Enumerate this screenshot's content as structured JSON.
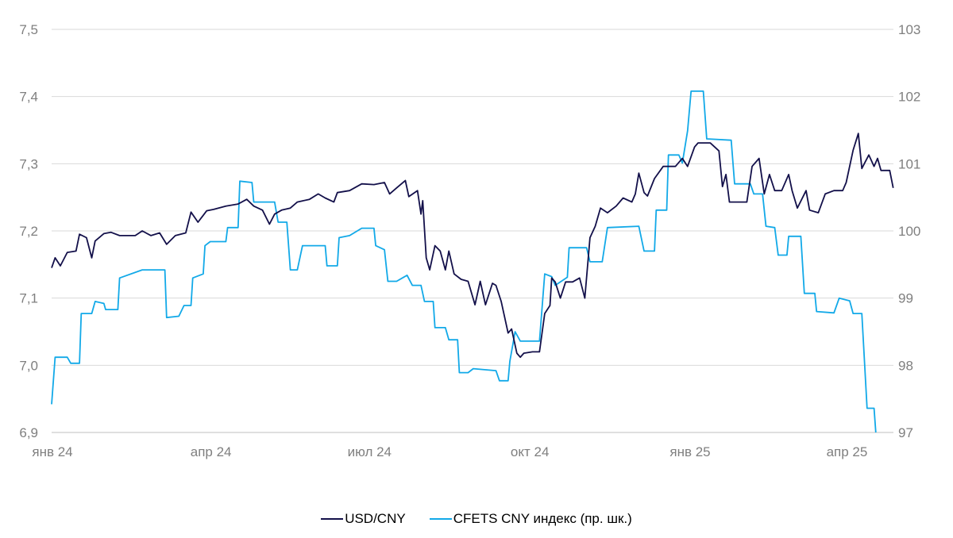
{
  "chart_data": {
    "type": "line",
    "title": "",
    "xlabel": "",
    "ylabel": "",
    "y_left": {
      "range": [
        6.9,
        7.5
      ],
      "ticks": [
        "6,9",
        "7,0",
        "7,1",
        "7,2",
        "7,3",
        "7,4",
        "7,5"
      ],
      "tick_values": [
        6.9,
        7.0,
        7.1,
        7.2,
        7.3,
        7.4,
        7.5
      ]
    },
    "y_right": {
      "range": [
        97,
        103
      ],
      "ticks": [
        "97",
        "98",
        "99",
        "100",
        "101",
        "102",
        "103"
      ],
      "tick_values": [
        97,
        98,
        99,
        100,
        101,
        102,
        103
      ]
    },
    "x_ticks": [
      {
        "label": "янв 24",
        "date": "2024-01-01"
      },
      {
        "label": "апр 24",
        "date": "2024-04-01"
      },
      {
        "label": "июл 24",
        "date": "2024-07-01"
      },
      {
        "label": "окт 24",
        "date": "2024-10-01"
      },
      {
        "label": "янв 25",
        "date": "2025-01-01"
      },
      {
        "label": "апр 25",
        "date": "2025-04-01"
      }
    ],
    "grid": "horizontal",
    "legend_position": "bottom",
    "series": [
      {
        "name": "USD/CNY",
        "axis": "left",
        "color": "#13104a",
        "points": [
          [
            "2024-01-01",
            7.145
          ],
          [
            "2024-01-03",
            7.16
          ],
          [
            "2024-01-06",
            7.148
          ],
          [
            "2024-01-10",
            7.168
          ],
          [
            "2024-01-15",
            7.17
          ],
          [
            "2024-01-17",
            7.195
          ],
          [
            "2024-01-21",
            7.19
          ],
          [
            "2024-01-24",
            7.16
          ],
          [
            "2024-01-26",
            7.185
          ],
          [
            "2024-01-31",
            7.196
          ],
          [
            "2024-02-04",
            7.198
          ],
          [
            "2024-02-09",
            7.193
          ],
          [
            "2024-02-18",
            7.193
          ],
          [
            "2024-02-22",
            7.2
          ],
          [
            "2024-02-27",
            7.193
          ],
          [
            "2024-03-03",
            7.197
          ],
          [
            "2024-03-07",
            7.18
          ],
          [
            "2024-03-12",
            7.193
          ],
          [
            "2024-03-18",
            7.197
          ],
          [
            "2024-03-21",
            7.228
          ],
          [
            "2024-03-25",
            7.213
          ],
          [
            "2024-03-30",
            7.23
          ],
          [
            "2024-04-03",
            7.232
          ],
          [
            "2024-04-10",
            7.237
          ],
          [
            "2024-04-17",
            7.24
          ],
          [
            "2024-04-22",
            7.247
          ],
          [
            "2024-04-26",
            7.237
          ],
          [
            "2024-05-01",
            7.231
          ],
          [
            "2024-05-05",
            7.21
          ],
          [
            "2024-05-08",
            7.225
          ],
          [
            "2024-05-12",
            7.231
          ],
          [
            "2024-05-17",
            7.234
          ],
          [
            "2024-05-21",
            7.243
          ],
          [
            "2024-05-28",
            7.247
          ],
          [
            "2024-06-02",
            7.255
          ],
          [
            "2024-06-06",
            7.249
          ],
          [
            "2024-06-11",
            7.243
          ],
          [
            "2024-06-13",
            7.257
          ],
          [
            "2024-06-20",
            7.26
          ],
          [
            "2024-06-27",
            7.27
          ],
          [
            "2024-07-04",
            7.269
          ],
          [
            "2024-07-10",
            7.272
          ],
          [
            "2024-07-13",
            7.255
          ],
          [
            "2024-07-17",
            7.264
          ],
          [
            "2024-07-22",
            7.275
          ],
          [
            "2024-07-24",
            7.251
          ],
          [
            "2024-07-29",
            7.26
          ],
          [
            "2024-07-31",
            7.225
          ],
          [
            "2024-08-01",
            7.245
          ],
          [
            "2024-08-03",
            7.16
          ],
          [
            "2024-08-05",
            7.142
          ],
          [
            "2024-08-08",
            7.178
          ],
          [
            "2024-08-11",
            7.17
          ],
          [
            "2024-08-14",
            7.142
          ],
          [
            "2024-08-16",
            7.17
          ],
          [
            "2024-08-19",
            7.136
          ],
          [
            "2024-08-23",
            7.128
          ],
          [
            "2024-08-27",
            7.125
          ],
          [
            "2024-08-31",
            7.09
          ],
          [
            "2024-09-03",
            7.125
          ],
          [
            "2024-09-06",
            7.09
          ],
          [
            "2024-09-10",
            7.122
          ],
          [
            "2024-09-12",
            7.119
          ],
          [
            "2024-09-15",
            7.095
          ],
          [
            "2024-09-19",
            7.048
          ],
          [
            "2024-09-21",
            7.054
          ],
          [
            "2024-09-24",
            7.018
          ],
          [
            "2024-09-26",
            7.012
          ],
          [
            "2024-09-28",
            7.018
          ],
          [
            "2024-10-03",
            7.02
          ],
          [
            "2024-10-07",
            7.02
          ],
          [
            "2024-10-10",
            7.077
          ],
          [
            "2024-10-13",
            7.089
          ],
          [
            "2024-10-14",
            7.13
          ],
          [
            "2024-10-16",
            7.124
          ],
          [
            "2024-10-19",
            7.1
          ],
          [
            "2024-10-22",
            7.124
          ],
          [
            "2024-10-26",
            7.124
          ],
          [
            "2024-10-30",
            7.13
          ],
          [
            "2024-11-02",
            7.1
          ],
          [
            "2024-11-05",
            7.19
          ],
          [
            "2024-11-08",
            7.207
          ],
          [
            "2024-11-11",
            7.234
          ],
          [
            "2024-11-15",
            7.227
          ],
          [
            "2024-11-20",
            7.237
          ],
          [
            "2024-11-24",
            7.249
          ],
          [
            "2024-11-29",
            7.243
          ],
          [
            "2024-12-01",
            7.255
          ],
          [
            "2024-12-03",
            7.286
          ],
          [
            "2024-12-06",
            7.257
          ],
          [
            "2024-12-08",
            7.252
          ],
          [
            "2024-12-12",
            7.278
          ],
          [
            "2024-12-17",
            7.296
          ],
          [
            "2024-12-24",
            7.296
          ],
          [
            "2024-12-28",
            7.308
          ],
          [
            "2024-12-31",
            7.296
          ],
          [
            "2025-01-04",
            7.325
          ],
          [
            "2025-01-06",
            7.331
          ],
          [
            "2025-01-13",
            7.331
          ],
          [
            "2025-01-18",
            7.319
          ],
          [
            "2025-01-20",
            7.266
          ],
          [
            "2025-01-22",
            7.284
          ],
          [
            "2025-01-24",
            7.243
          ],
          [
            "2025-01-29",
            7.243
          ],
          [
            "2025-02-03",
            7.243
          ],
          [
            "2025-02-06",
            7.296
          ],
          [
            "2025-02-10",
            7.308
          ],
          [
            "2025-02-13",
            7.255
          ],
          [
            "2025-02-16",
            7.284
          ],
          [
            "2025-02-19",
            7.26
          ],
          [
            "2025-02-23",
            7.26
          ],
          [
            "2025-02-27",
            7.284
          ],
          [
            "2025-03-01",
            7.26
          ],
          [
            "2025-03-04",
            7.234
          ],
          [
            "2025-03-09",
            7.26
          ],
          [
            "2025-03-11",
            7.231
          ],
          [
            "2025-03-16",
            7.227
          ],
          [
            "2025-03-20",
            7.255
          ],
          [
            "2025-03-25",
            7.26
          ],
          [
            "2025-03-30",
            7.26
          ],
          [
            "2025-04-01",
            7.272
          ],
          [
            "2025-04-05",
            7.32
          ],
          [
            "2025-04-08",
            7.345
          ],
          [
            "2025-04-10",
            7.293
          ],
          [
            "2025-04-14",
            7.313
          ],
          [
            "2025-04-17",
            7.296
          ],
          [
            "2025-04-19",
            7.308
          ],
          [
            "2025-04-21",
            7.29
          ],
          [
            "2025-04-26",
            7.29
          ],
          [
            "2025-04-28",
            7.264
          ]
        ]
      },
      {
        "name": "CFETS CNY индекс (пр. шк.)",
        "axis": "right",
        "color": "#12a9e8",
        "points": [
          [
            "2024-01-01",
            97.42
          ],
          [
            "2024-01-03",
            98.12
          ],
          [
            "2024-01-10",
            98.12
          ],
          [
            "2024-01-12",
            98.03
          ],
          [
            "2024-01-17",
            98.03
          ],
          [
            "2024-01-18",
            98.77
          ],
          [
            "2024-01-24",
            98.77
          ],
          [
            "2024-01-26",
            98.95
          ],
          [
            "2024-01-31",
            98.92
          ],
          [
            "2024-02-01",
            98.83
          ],
          [
            "2024-02-08",
            98.83
          ],
          [
            "2024-02-09",
            99.3
          ],
          [
            "2024-02-22",
            99.42
          ],
          [
            "2024-03-06",
            99.42
          ],
          [
            "2024-03-07",
            98.71
          ],
          [
            "2024-03-14",
            98.73
          ],
          [
            "2024-03-17",
            98.89
          ],
          [
            "2024-03-21",
            98.89
          ],
          [
            "2024-03-22",
            99.3
          ],
          [
            "2024-03-28",
            99.36
          ],
          [
            "2024-03-29",
            99.78
          ],
          [
            "2024-04-01",
            99.84
          ],
          [
            "2024-04-10",
            99.84
          ],
          [
            "2024-04-11",
            100.05
          ],
          [
            "2024-04-17",
            100.05
          ],
          [
            "2024-04-18",
            100.74
          ],
          [
            "2024-04-25",
            100.72
          ],
          [
            "2024-04-26",
            100.43
          ],
          [
            "2024-05-08",
            100.43
          ],
          [
            "2024-05-10",
            100.13
          ],
          [
            "2024-05-15",
            100.13
          ],
          [
            "2024-05-17",
            99.42
          ],
          [
            "2024-05-21",
            99.42
          ],
          [
            "2024-05-24",
            99.78
          ],
          [
            "2024-06-06",
            99.78
          ],
          [
            "2024-06-07",
            99.48
          ],
          [
            "2024-06-13",
            99.48
          ],
          [
            "2024-06-14",
            99.9
          ],
          [
            "2024-06-20",
            99.93
          ],
          [
            "2024-06-27",
            100.04
          ],
          [
            "2024-07-04",
            100.04
          ],
          [
            "2024-07-05",
            99.78
          ],
          [
            "2024-07-10",
            99.72
          ],
          [
            "2024-07-12",
            99.25
          ],
          [
            "2024-07-17",
            99.25
          ],
          [
            "2024-07-23",
            99.34
          ],
          [
            "2024-07-26",
            99.19
          ],
          [
            "2024-07-31",
            99.19
          ],
          [
            "2024-08-02",
            98.95
          ],
          [
            "2024-08-07",
            98.95
          ],
          [
            "2024-08-08",
            98.56
          ],
          [
            "2024-08-14",
            98.56
          ],
          [
            "2024-08-16",
            98.38
          ],
          [
            "2024-08-21",
            98.38
          ],
          [
            "2024-08-22",
            97.89
          ],
          [
            "2024-08-27",
            97.89
          ],
          [
            "2024-08-30",
            97.95
          ],
          [
            "2024-09-12",
            97.92
          ],
          [
            "2024-09-14",
            97.77
          ],
          [
            "2024-09-19",
            97.77
          ],
          [
            "2024-09-20",
            98.06
          ],
          [
            "2024-09-23",
            98.5
          ],
          [
            "2024-09-26",
            98.36
          ],
          [
            "2024-10-07",
            98.36
          ],
          [
            "2024-10-10",
            99.36
          ],
          [
            "2024-10-14",
            99.32
          ],
          [
            "2024-10-16",
            99.19
          ],
          [
            "2024-10-23",
            99.31
          ],
          [
            "2024-10-24",
            99.75
          ],
          [
            "2024-11-03",
            99.75
          ],
          [
            "2024-11-05",
            99.54
          ],
          [
            "2024-11-12",
            99.54
          ],
          [
            "2024-11-15",
            100.05
          ],
          [
            "2024-12-03",
            100.07
          ],
          [
            "2024-12-06",
            99.7
          ],
          [
            "2024-12-12",
            99.7
          ],
          [
            "2024-12-13",
            100.31
          ],
          [
            "2024-12-19",
            100.31
          ],
          [
            "2024-12-20",
            101.13
          ],
          [
            "2024-12-26",
            101.13
          ],
          [
            "2024-12-28",
            101.01
          ],
          [
            "2024-12-31",
            101.49
          ],
          [
            "2025-01-02",
            102.08
          ],
          [
            "2025-01-09",
            102.08
          ],
          [
            "2025-01-11",
            101.37
          ],
          [
            "2025-01-25",
            101.35
          ],
          [
            "2025-01-27",
            100.7
          ],
          [
            "2025-02-05",
            100.7
          ],
          [
            "2025-02-07",
            100.55
          ],
          [
            "2025-02-12",
            100.55
          ],
          [
            "2025-02-14",
            100.07
          ],
          [
            "2025-02-19",
            100.05
          ],
          [
            "2025-02-21",
            99.64
          ],
          [
            "2025-02-26",
            99.64
          ],
          [
            "2025-02-27",
            99.92
          ],
          [
            "2025-03-06",
            99.92
          ],
          [
            "2025-03-08",
            99.07
          ],
          [
            "2025-03-14",
            99.07
          ],
          [
            "2025-03-15",
            98.8
          ],
          [
            "2025-03-25",
            98.78
          ],
          [
            "2025-03-28",
            99.0
          ],
          [
            "2025-04-03",
            98.96
          ],
          [
            "2025-04-05",
            98.77
          ],
          [
            "2025-04-10",
            98.77
          ],
          [
            "2025-04-13",
            97.36
          ],
          [
            "2025-04-17",
            97.36
          ],
          [
            "2025-04-18",
            97.0
          ]
        ]
      }
    ]
  }
}
